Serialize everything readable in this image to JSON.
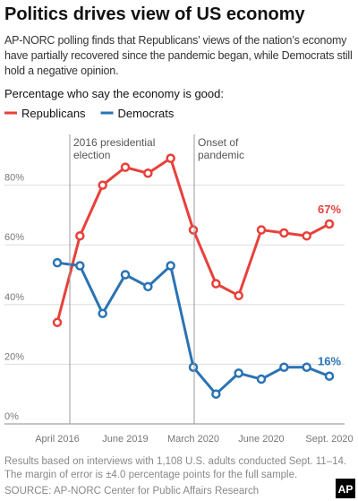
{
  "chart_data": {
    "type": "line",
    "title": "Politics drives view of US economy",
    "subtitle": [
      "AP-NORC polling finds that Republicans’ views of the nation’s economy",
      "have partially recovered since the pandemic began, while Democrats still",
      "hold a negative opinion."
    ],
    "y_label": "Percentage who say the economy is good:",
    "categories": [
      "April 2016",
      null,
      null,
      "June 2019",
      null,
      null,
      "March 2020",
      null,
      null,
      "June 2020",
      null,
      null,
      "Sept. 2020"
    ],
    "series": [
      {
        "name": "Republicans",
        "color": "#e8403a",
        "values": [
          34,
          63,
          80,
          86,
          84,
          89,
          65,
          47,
          43,
          65,
          64,
          63,
          67
        ],
        "value_labels": [
          null,
          null,
          null,
          null,
          null,
          null,
          null,
          null,
          null,
          null,
          null,
          null,
          "67%"
        ]
      },
      {
        "name": "Democrats",
        "color": "#2a73b4",
        "values": [
          54,
          53,
          37,
          50,
          46,
          53,
          19,
          10,
          17,
          15,
          19,
          19,
          16
        ],
        "value_labels": [
          null,
          null,
          null,
          null,
          null,
          null,
          null,
          null,
          null,
          null,
          null,
          null,
          "16%"
        ]
      }
    ],
    "ylim": [
      0,
      97
    ],
    "yticks": [
      {
        "value": 0,
        "label": "0%"
      },
      {
        "value": 20,
        "label": "20%"
      },
      {
        "value": 40,
        "label": "40%"
      },
      {
        "value": 60,
        "label": "60%"
      },
      {
        "value": 80,
        "label": "80%"
      }
    ],
    "grid": true,
    "annotations": [
      [
        "2016 presidential",
        "election"
      ],
      [
        "Onset of",
        "pandemic"
      ]
    ],
    "notes": [
      "Results based on interviews with 1,108 U.S. adults conducted Sept. 11–14.",
      "The margin of error is ±4.0 percentage points for the full sample."
    ],
    "source": "SOURCE: AP-NORC Center for Public Affairs Research",
    "logo": "AP"
  }
}
